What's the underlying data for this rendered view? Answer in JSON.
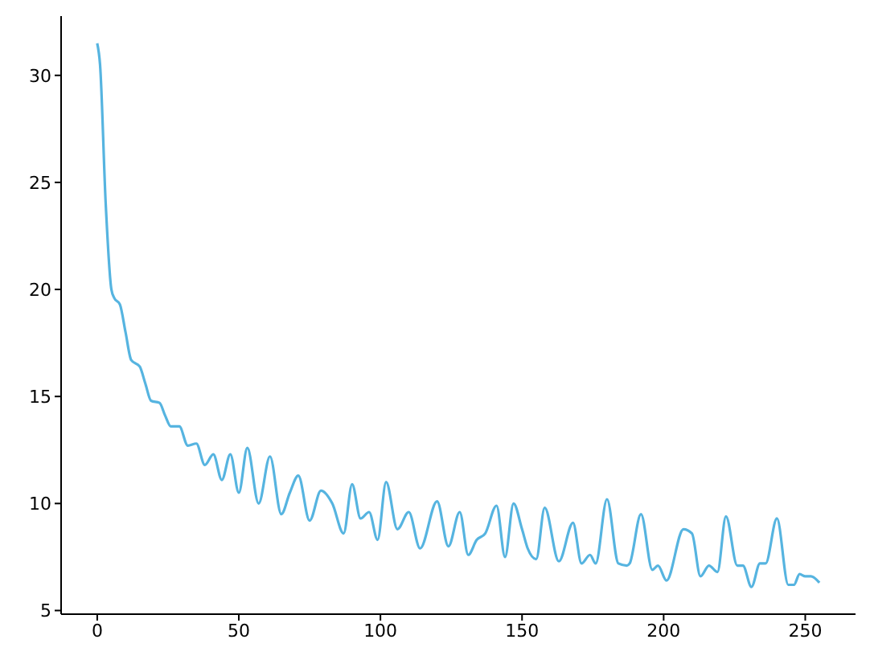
{
  "chart_data": {
    "type": "line",
    "x": [
      0,
      1,
      3,
      5,
      6,
      8,
      10,
      12,
      15,
      17,
      19,
      22,
      24,
      26,
      29,
      32,
      35,
      38,
      41,
      44,
      47,
      50,
      53,
      57,
      61,
      65,
      68,
      71,
      75,
      79,
      83,
      87,
      90,
      93,
      96,
      99,
      102,
      106,
      110,
      114,
      120,
      124,
      128,
      131,
      134,
      137,
      141,
      144,
      147,
      150,
      152,
      155,
      158,
      163,
      168,
      171,
      174,
      176,
      180,
      184,
      187,
      188,
      192,
      196,
      198,
      201,
      207,
      210,
      213,
      216,
      219,
      222,
      226,
      228,
      231,
      234,
      236,
      240,
      244,
      246,
      248,
      250,
      252,
      255
    ],
    "series": [
      {
        "color": "#56b4e0",
        "values": [
          31.5,
          30.5,
          24,
          20,
          19.6,
          19.3,
          18,
          16.7,
          16.4,
          15.6,
          14.8,
          14.7,
          14.1,
          13.6,
          13.6,
          12.7,
          12.8,
          11.8,
          12.3,
          11.1,
          12.3,
          10.5,
          12.6,
          10.0,
          12.2,
          9.5,
          10.5,
          11.3,
          9.2,
          10.6,
          10.0,
          8.6,
          10.9,
          9.3,
          9.6,
          8.3,
          11.0,
          8.8,
          9.6,
          7.9,
          10.1,
          8.0,
          9.6,
          7.6,
          8.3,
          8.6,
          9.9,
          7.5,
          10.0,
          8.8,
          7.9,
          7.4,
          9.8,
          7.3,
          9.1,
          7.2,
          7.6,
          7.2,
          10.2,
          7.2,
          7.1,
          7.2,
          9.5,
          6.9,
          7.1,
          6.4,
          8.8,
          8.6,
          6.6,
          7.1,
          6.8,
          9.4,
          7.1,
          7.1,
          6.1,
          7.2,
          7.2,
          9.3,
          6.2,
          6.2,
          6.7,
          6.6,
          6.6,
          6.3
        ]
      }
    ],
    "xlim": [
      -12.75,
      267.75
    ],
    "xticks": [
      0,
      50,
      100,
      150,
      200,
      250
    ],
    "ylim": [
      4.83,
      32.77
    ],
    "yticks": [
      5,
      10,
      15,
      20,
      25,
      30
    ],
    "grid": false,
    "legend": false,
    "marker": "none",
    "line_style": "solid"
  }
}
